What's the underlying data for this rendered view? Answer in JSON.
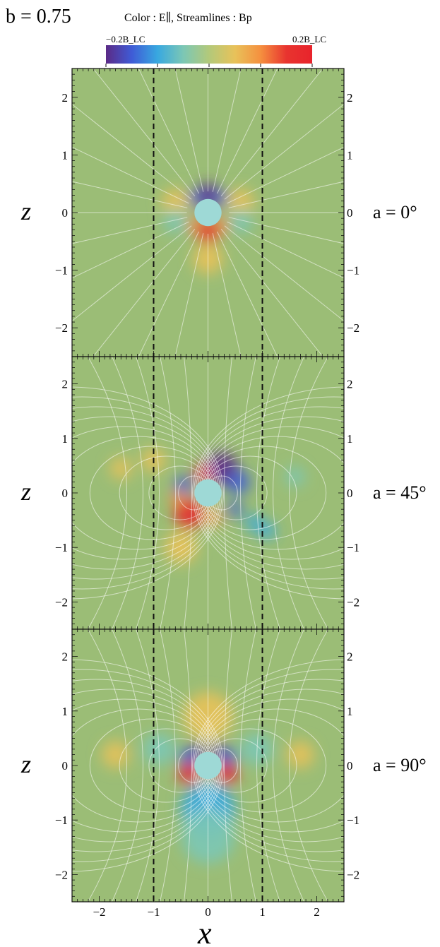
{
  "figure": {
    "param_label": "b = 0.75",
    "legend_text": "Color : E∥,   Streamlines : Bp",
    "colorbar": {
      "min_label": "−0.2B_LC",
      "max_label": "0.2B_LC",
      "range": [
        -2,
        2
      ],
      "ticks": [
        "−2",
        "−1",
        "0",
        "1",
        "2"
      ],
      "stops": [
        "#5b2a86",
        "#3f5bd6",
        "#38a8e0",
        "#7cc7b5",
        "#b3c97a",
        "#e8c25a",
        "#f5903f",
        "#e8342f",
        "#e8232c"
      ]
    },
    "xlabel": "x",
    "ylabel": "z"
  },
  "chart_data": [
    {
      "type": "heatmap",
      "title": "a = 0°",
      "xlabel": "",
      "ylabel": "z",
      "xlim": [
        -2.5,
        2.5
      ],
      "ylim": [
        -2.5,
        2.5
      ],
      "y_ticks": [
        "−2",
        "−1",
        "0",
        "1",
        "2"
      ],
      "right_ticks": [
        "−2",
        "−1",
        "0",
        "1",
        "2"
      ],
      "dashed_x": [
        -1,
        1
      ],
      "star_radius": 0.25,
      "background": "#9bbd76",
      "blobs": [
        {
          "x": 0.0,
          "y": 0.3,
          "r": 0.22,
          "color": "#5b2a86"
        },
        {
          "x": -0.22,
          "y": 0.25,
          "r": 0.14,
          "color": "#3f5bd6"
        },
        {
          "x": 0.22,
          "y": 0.25,
          "r": 0.14,
          "color": "#3f5bd6"
        },
        {
          "x": 0.0,
          "y": -0.32,
          "r": 0.22,
          "color": "#e8232c"
        },
        {
          "x": -0.25,
          "y": -0.22,
          "r": 0.14,
          "color": "#f5903f"
        },
        {
          "x": 0.25,
          "y": -0.22,
          "r": 0.14,
          "color": "#f5903f"
        },
        {
          "x": -0.6,
          "y": 0.18,
          "r": 0.25,
          "color": "#e8c25a"
        },
        {
          "x": 0.6,
          "y": 0.18,
          "r": 0.25,
          "color": "#e8c25a"
        },
        {
          "x": -0.6,
          "y": -0.15,
          "r": 0.22,
          "color": "#7cc7b5"
        },
        {
          "x": 0.6,
          "y": -0.15,
          "r": 0.22,
          "color": "#7cc7b5"
        },
        {
          "x": 0.0,
          "y": -0.8,
          "r": 0.28,
          "color": "#e8c25a"
        }
      ]
    },
    {
      "type": "heatmap",
      "title": "a = 45°",
      "xlabel": "",
      "ylabel": "z",
      "xlim": [
        -2.5,
        2.5
      ],
      "ylim": [
        -2.5,
        2.5
      ],
      "y_ticks": [
        "−2",
        "−1",
        "0",
        "1",
        "2"
      ],
      "right_ticks": [
        "−2",
        "−1",
        "0",
        "1",
        "2"
      ],
      "dashed_x": [
        -1,
        1
      ],
      "star_radius": 0.25,
      "background": "#9bbd76",
      "blobs": [
        {
          "x": 0.25,
          "y": 0.45,
          "r": 0.3,
          "color": "#5b2a86"
        },
        {
          "x": -0.1,
          "y": 0.35,
          "r": 0.15,
          "color": "#e8232c"
        },
        {
          "x": 0.55,
          "y": 0.2,
          "r": 0.22,
          "color": "#3f5bd6"
        },
        {
          "x": -0.35,
          "y": -0.38,
          "r": 0.28,
          "color": "#e8232c"
        },
        {
          "x": -0.55,
          "y": -0.1,
          "r": 0.15,
          "color": "#f5903f"
        },
        {
          "x": 0.1,
          "y": -0.45,
          "r": 0.15,
          "color": "#f5903f"
        },
        {
          "x": -0.45,
          "y": 0.15,
          "r": 0.16,
          "color": "#3f5bd6"
        },
        {
          "x": 0.5,
          "y": -0.3,
          "r": 0.14,
          "color": "#3f5bd6"
        },
        {
          "x": 0.85,
          "y": -0.55,
          "r": 0.16,
          "color": "#38a8e0"
        },
        {
          "x": 1.1,
          "y": -0.7,
          "r": 0.15,
          "color": "#38a8e0"
        },
        {
          "x": -1.0,
          "y": 0.6,
          "r": 0.22,
          "color": "#e8c25a"
        },
        {
          "x": -1.6,
          "y": 0.45,
          "r": 0.2,
          "color": "#e8c25a"
        },
        {
          "x": 1.6,
          "y": 0.3,
          "r": 0.18,
          "color": "#7cc7b5"
        },
        {
          "x": -0.5,
          "y": -1.0,
          "r": 0.3,
          "color": "#e8c25a"
        }
      ]
    },
    {
      "type": "heatmap",
      "title": "a = 90°",
      "xlabel": "x",
      "ylabel": "z",
      "xlim": [
        -2.5,
        2.5
      ],
      "ylim": [
        -2.5,
        2.5
      ],
      "x_ticks": [
        "−2",
        "−1",
        "0",
        "1",
        "2"
      ],
      "y_ticks": [
        "−2",
        "−1",
        "0",
        "1",
        "2"
      ],
      "right_ticks": [
        "−2",
        "−1",
        "0",
        "1",
        "2"
      ],
      "dashed_x": [
        -1,
        1
      ],
      "star_radius": 0.25,
      "background": "#9bbd76",
      "blobs": [
        {
          "x": -0.35,
          "y": 0.15,
          "r": 0.18,
          "color": "#3f5bd6"
        },
        {
          "x": 0.35,
          "y": 0.15,
          "r": 0.18,
          "color": "#3f5bd6"
        },
        {
          "x": -0.35,
          "y": -0.15,
          "r": 0.2,
          "color": "#e8232c"
        },
        {
          "x": 0.35,
          "y": -0.15,
          "r": 0.2,
          "color": "#e8232c"
        },
        {
          "x": -0.15,
          "y": 0.3,
          "r": 0.12,
          "color": "#5b2a86"
        },
        {
          "x": 0.15,
          "y": 0.3,
          "r": 0.12,
          "color": "#5b2a86"
        },
        {
          "x": 0.0,
          "y": 0.9,
          "r": 0.45,
          "color": "#e8c25a"
        },
        {
          "x": 0.0,
          "y": -0.8,
          "r": 0.5,
          "color": "#38a8e0"
        },
        {
          "x": 0.0,
          "y": -1.3,
          "r": 0.5,
          "color": "#7cc7b5"
        },
        {
          "x": -0.9,
          "y": 0.3,
          "r": 0.3,
          "color": "#7cc7b5"
        },
        {
          "x": 0.9,
          "y": 0.3,
          "r": 0.3,
          "color": "#7cc7b5"
        },
        {
          "x": -1.7,
          "y": 0.2,
          "r": 0.25,
          "color": "#e8c25a"
        },
        {
          "x": 1.7,
          "y": 0.2,
          "r": 0.25,
          "color": "#e8c25a"
        }
      ]
    }
  ]
}
